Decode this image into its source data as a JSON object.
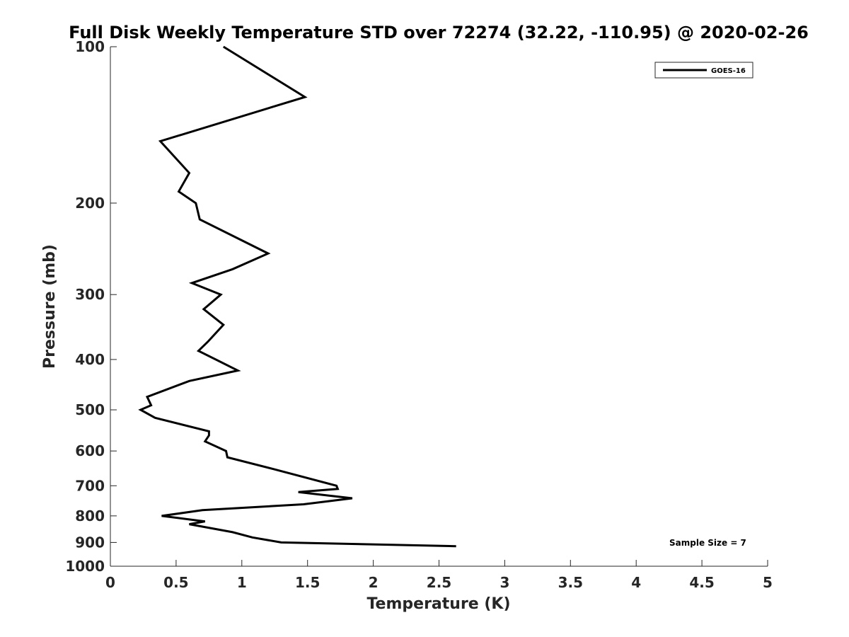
{
  "chart_data": {
    "type": "line",
    "title": "Full Disk Weekly Temperature STD over 72274 (32.22, -110.95) @ 2020-02-26",
    "xlabel": "Temperature (K)",
    "ylabel": "Pressure (mb)",
    "xlim": [
      0,
      5
    ],
    "ylim": [
      100,
      1000
    ],
    "y_scale": "log",
    "y_direction": "reversed",
    "x_ticks": [
      0,
      0.5,
      1,
      1.5,
      2,
      2.5,
      3,
      3.5,
      4,
      4.5,
      5
    ],
    "x_tick_labels": [
      "0",
      "0.5",
      "1",
      "1.5",
      "2",
      "2.5",
      "3",
      "3.5",
      "4",
      "4.5",
      "5"
    ],
    "y_ticks": [
      100,
      200,
      300,
      400,
      500,
      600,
      700,
      800,
      900,
      1000
    ],
    "y_tick_labels": [
      "100",
      "200",
      "300",
      "400",
      "500",
      "600",
      "700",
      "800",
      "900",
      "1000"
    ],
    "legend_position": "top-right",
    "annotation": "Sample Size = 7",
    "series": [
      {
        "name": "GOES-16",
        "color": "#000000",
        "points": [
          {
            "p": 100,
            "t": 0.86
          },
          {
            "p": 125,
            "t": 1.48
          },
          {
            "p": 152,
            "t": 0.38
          },
          {
            "p": 175,
            "t": 0.6
          },
          {
            "p": 190,
            "t": 0.52
          },
          {
            "p": 200,
            "t": 0.65
          },
          {
            "p": 215,
            "t": 0.68
          },
          {
            "p": 250,
            "t": 1.2
          },
          {
            "p": 268,
            "t": 0.93
          },
          {
            "p": 285,
            "t": 0.62
          },
          {
            "p": 300,
            "t": 0.84
          },
          {
            "p": 320,
            "t": 0.71
          },
          {
            "p": 343,
            "t": 0.86
          },
          {
            "p": 370,
            "t": 0.74
          },
          {
            "p": 385,
            "t": 0.67
          },
          {
            "p": 420,
            "t": 0.97
          },
          {
            "p": 440,
            "t": 0.6
          },
          {
            "p": 472,
            "t": 0.28
          },
          {
            "p": 490,
            "t": 0.31
          },
          {
            "p": 500,
            "t": 0.23
          },
          {
            "p": 518,
            "t": 0.34
          },
          {
            "p": 550,
            "t": 0.75
          },
          {
            "p": 560,
            "t": 0.75
          },
          {
            "p": 575,
            "t": 0.72
          },
          {
            "p": 600,
            "t": 0.88
          },
          {
            "p": 617,
            "t": 0.89
          },
          {
            "p": 650,
            "t": 1.24
          },
          {
            "p": 700,
            "t": 1.72
          },
          {
            "p": 710,
            "t": 1.73
          },
          {
            "p": 720,
            "t": 1.43
          },
          {
            "p": 740,
            "t": 1.84
          },
          {
            "p": 760,
            "t": 1.47
          },
          {
            "p": 780,
            "t": 0.7
          },
          {
            "p": 800,
            "t": 0.39
          },
          {
            "p": 820,
            "t": 0.72
          },
          {
            "p": 830,
            "t": 0.6
          },
          {
            "p": 860,
            "t": 0.93
          },
          {
            "p": 880,
            "t": 1.08
          },
          {
            "p": 900,
            "t": 1.3
          },
          {
            "p": 915,
            "t": 2.63
          }
        ]
      }
    ]
  }
}
